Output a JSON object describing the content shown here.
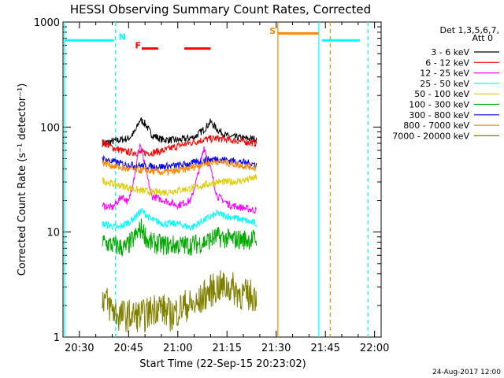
{
  "chart_data": {
    "type": "line",
    "title": "HESSI Observing Summary Count Rates, Corrected",
    "xlabel": "Start Time (22-Sep-15 20:23:02)",
    "ylabel": "Corrected Count Rate (s⁻¹ detector⁻¹)",
    "ylog": true,
    "ylim": [
      1,
      1000
    ],
    "xlim_minutes_after_2030": [
      -5,
      92
    ],
    "x_ticks": [
      {
        "label": "20:30",
        "t": 0
      },
      {
        "label": "20:45",
        "t": 15
      },
      {
        "label": "21:00",
        "t": 30
      },
      {
        "label": "21:15",
        "t": 45
      },
      {
        "label": "21:30",
        "t": 60
      },
      {
        "label": "21:45",
        "t": 75
      },
      {
        "label": "22:00",
        "t": 90
      }
    ],
    "y_ticks": [
      {
        "label": "1",
        "v": 1
      },
      {
        "label": "10",
        "v": 10
      },
      {
        "label": "100",
        "v": 100
      },
      {
        "label": "1000",
        "v": 1000
      }
    ],
    "legend_title": [
      "Det 1,3,5,6,7,",
      "Att 0"
    ],
    "legend_position": "right",
    "series": [
      {
        "name": "3 - 6 keV",
        "color": "#000000",
        "points": [
          [
            7,
            70
          ],
          [
            9,
            72
          ],
          [
            12,
            75
          ],
          [
            15,
            78
          ],
          [
            17,
            90
          ],
          [
            18.5,
            118
          ],
          [
            20,
            108
          ],
          [
            22,
            85
          ],
          [
            25,
            76
          ],
          [
            30,
            75
          ],
          [
            35,
            80
          ],
          [
            38,
            95
          ],
          [
            40,
            112
          ],
          [
            42,
            95
          ],
          [
            45,
            82
          ],
          [
            50,
            78
          ],
          [
            54,
            77
          ]
        ]
      },
      {
        "name": "6 - 12 keV",
        "color": "#ff0000",
        "points": [
          [
            7,
            72
          ],
          [
            10,
            64
          ],
          [
            14,
            58
          ],
          [
            18,
            57
          ],
          [
            22,
            57
          ],
          [
            26,
            60
          ],
          [
            30,
            66
          ],
          [
            34,
            71
          ],
          [
            38,
            76
          ],
          [
            42,
            78
          ],
          [
            46,
            75
          ],
          [
            50,
            73
          ],
          [
            54,
            70
          ]
        ]
      },
      {
        "name": "12 - 25 keV",
        "color": "#ff00ff",
        "points": [
          [
            7,
            18
          ],
          [
            10,
            17
          ],
          [
            13,
            22
          ],
          [
            15,
            19
          ],
          [
            17,
            38
          ],
          [
            18.5,
            70
          ],
          [
            20,
            42
          ],
          [
            22,
            22
          ],
          [
            26,
            20
          ],
          [
            30,
            18
          ],
          [
            34,
            20
          ],
          [
            36,
            34
          ],
          [
            38,
            65
          ],
          [
            40,
            40
          ],
          [
            42,
            22
          ],
          [
            46,
            18
          ],
          [
            50,
            17
          ],
          [
            54,
            16
          ]
        ]
      },
      {
        "name": "25 - 50 keV",
        "color": "#00ffff",
        "points": [
          [
            7,
            12
          ],
          [
            12,
            11
          ],
          [
            16,
            13
          ],
          [
            19,
            16
          ],
          [
            22,
            13
          ],
          [
            26,
            12
          ],
          [
            30,
            12
          ],
          [
            34,
            11
          ],
          [
            38,
            13
          ],
          [
            42,
            15
          ],
          [
            46,
            14
          ],
          [
            50,
            13
          ],
          [
            54,
            12
          ]
        ]
      },
      {
        "name": "50 - 100 keV",
        "color": "#ddcc00",
        "points": [
          [
            7,
            31
          ],
          [
            10,
            29
          ],
          [
            14,
            27
          ],
          [
            18,
            25
          ],
          [
            22,
            24
          ],
          [
            26,
            24
          ],
          [
            30,
            25
          ],
          [
            34,
            26
          ],
          [
            38,
            28
          ],
          [
            42,
            30
          ],
          [
            46,
            30
          ],
          [
            50,
            31
          ],
          [
            54,
            33
          ]
        ]
      },
      {
        "name": "100 - 300 keV",
        "color": "#00aa00",
        "points": [
          [
            7,
            8
          ],
          [
            10,
            7.5
          ],
          [
            14,
            7
          ],
          [
            17,
            9
          ],
          [
            19,
            11
          ],
          [
            21,
            8
          ],
          [
            26,
            7.5
          ],
          [
            30,
            7.5
          ],
          [
            34,
            7.5
          ],
          [
            38,
            8
          ],
          [
            42,
            9
          ],
          [
            46,
            8.5
          ],
          [
            50,
            8.5
          ],
          [
            54,
            8.5
          ]
        ]
      },
      {
        "name": "300 - 800 keV",
        "color": "#0000ff",
        "points": [
          [
            7,
            50
          ],
          [
            10,
            47
          ],
          [
            14,
            44
          ],
          [
            18,
            43
          ],
          [
            22,
            42
          ],
          [
            26,
            42
          ],
          [
            30,
            43
          ],
          [
            34,
            45
          ],
          [
            38,
            48
          ],
          [
            42,
            50
          ],
          [
            46,
            48
          ],
          [
            50,
            46
          ],
          [
            54,
            44
          ]
        ]
      },
      {
        "name": "800 - 7000 keV",
        "color": "#ff8800",
        "points": [
          [
            7,
            46
          ],
          [
            10,
            43
          ],
          [
            14,
            40
          ],
          [
            18,
            39
          ],
          [
            22,
            38
          ],
          [
            26,
            37
          ],
          [
            30,
            38
          ],
          [
            34,
            41
          ],
          [
            38,
            45
          ],
          [
            42,
            47
          ],
          [
            46,
            45
          ],
          [
            50,
            43
          ],
          [
            54,
            41
          ]
        ]
      },
      {
        "name": "7000 - 20000 keV",
        "color": "#808000",
        "points": [
          [
            7,
            2.5
          ],
          [
            9,
            2
          ],
          [
            12,
            1.6
          ],
          [
            16,
            1.6
          ],
          [
            20,
            1.6
          ],
          [
            24,
            2
          ],
          [
            28,
            1.6
          ],
          [
            32,
            2
          ],
          [
            36,
            2
          ],
          [
            38,
            2.5
          ],
          [
            42,
            3
          ],
          [
            46,
            3
          ],
          [
            50,
            2.5
          ],
          [
            54,
            2.5
          ]
        ]
      }
    ],
    "annotations": [
      {
        "text": "N",
        "color": "#00ffff",
        "t": 11,
        "v": 680
      },
      {
        "text": "F",
        "color": "#ff0000",
        "t": 16,
        "v": 560
      },
      {
        "text": "S",
        "color": "#ff8800",
        "t": 57,
        "v": 770
      }
    ],
    "flag_bars": [
      {
        "label": "night",
        "color": "#00ffff",
        "ranges": [
          [
            -4.5,
            10.5
          ],
          [
            74,
            85.5
          ]
        ],
        "v": 670
      },
      {
        "label": "flare",
        "color": "#ff0000",
        "ranges": [
          [
            19,
            24
          ],
          [
            32,
            40
          ]
        ],
        "v": 560
      },
      {
        "label": "saa",
        "color": "#ff8800",
        "ranges": [
          [
            60.5,
            73
          ]
        ],
        "v": 780
      }
    ],
    "vertical_lines": [
      {
        "color": "#00ffff",
        "style": "solid",
        "t": -4.5
      },
      {
        "color": "#00ffff",
        "style": "dashed",
        "t": 11
      },
      {
        "color": "#ff8800",
        "style": "solid",
        "t": 60.5
      },
      {
        "color": "#00ffff",
        "style": "solid",
        "t": 73
      },
      {
        "color": "#ff8800",
        "style": "dashed",
        "t": 76.5
      },
      {
        "color": "#00ffff",
        "style": "dashed",
        "t": 88
      }
    ]
  },
  "footer_stamp": "24-Aug-2017 12:00"
}
